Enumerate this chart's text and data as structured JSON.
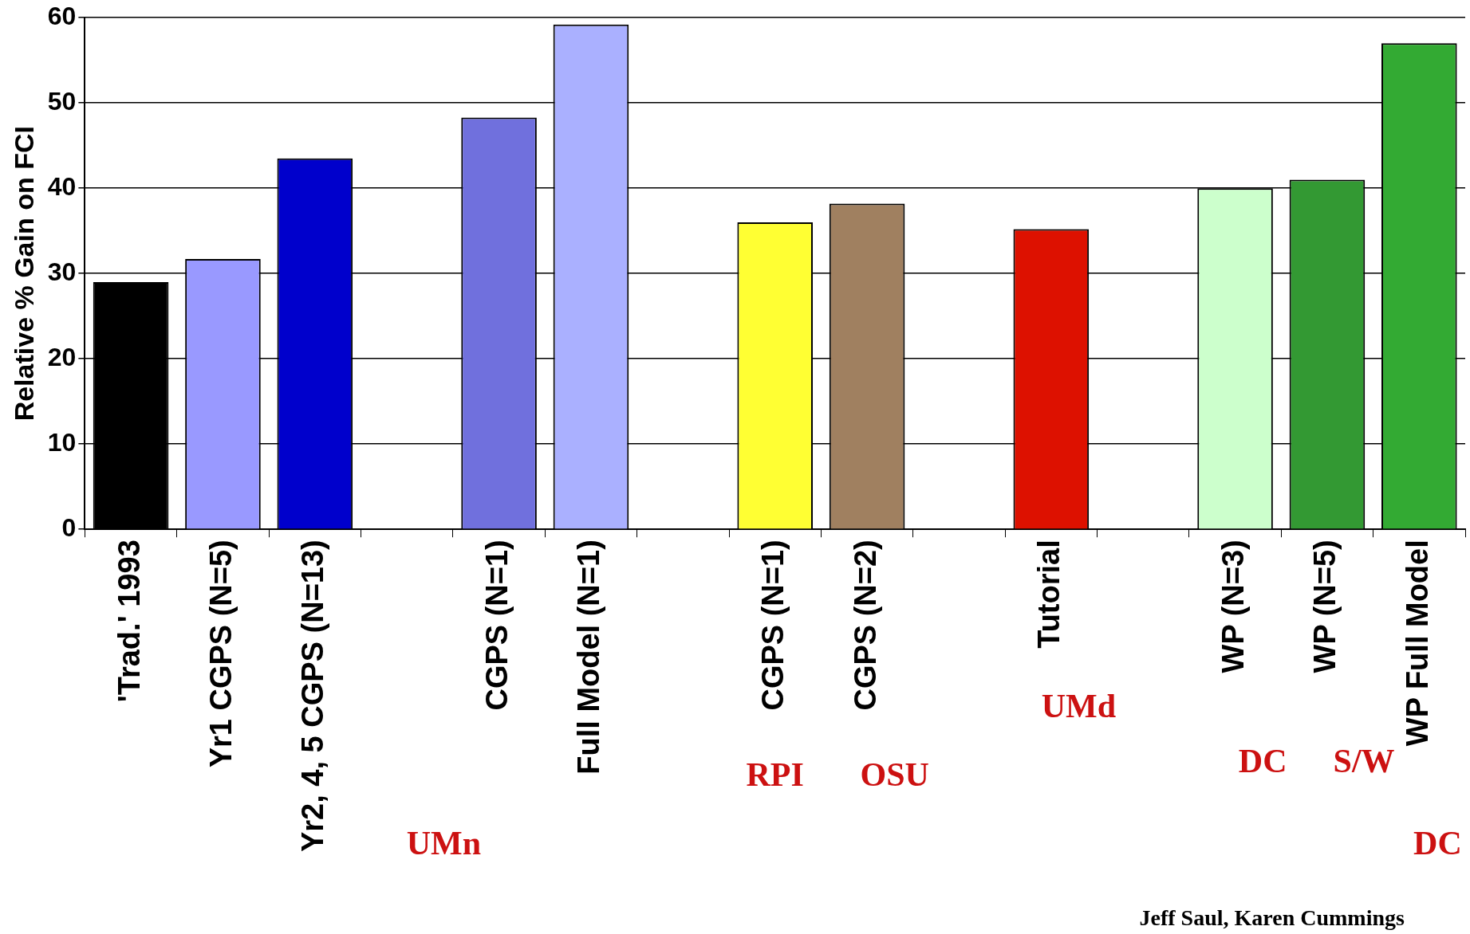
{
  "chart_data": {
    "type": "bar",
    "ylabel": "Relative % Gain on FCI",
    "categories": [
      "'Trad.' 1993",
      "Yr1 CGPS (N=5)",
      "Yr2, 4, 5 CGPS (N=13)",
      null,
      "CGPS (N=1)",
      "Full Model (N=1)",
      null,
      "CGPS (N=1)",
      "CGPS (N=2)",
      null,
      "Tutorial",
      null,
      "WP (N=3)",
      "WP (N=5)",
      "WP Full Model"
    ],
    "values": [
      29,
      31.7,
      43.5,
      null,
      48.3,
      59.2,
      null,
      36,
      38.2,
      null,
      35.2,
      null,
      40,
      41,
      57
    ],
    "colors": [
      "#000000",
      "#9999ff",
      "#0000cc",
      null,
      "#7070dd",
      "#aab0ff",
      null,
      "#ffff33",
      "#a08060",
      null,
      "#dd1100",
      null,
      "#ccffcc",
      "#339933",
      "#33aa33"
    ],
    "ylim": [
      0,
      60
    ],
    "yticks": [
      0,
      10,
      20,
      30,
      40,
      50,
      60
    ],
    "grid": "y",
    "annotations": [
      "UMn",
      "RPI",
      "OSU",
      "UMd",
      "DC",
      "S/W",
      "DC",
      "Jeff Saul, Karen Cummings"
    ]
  }
}
